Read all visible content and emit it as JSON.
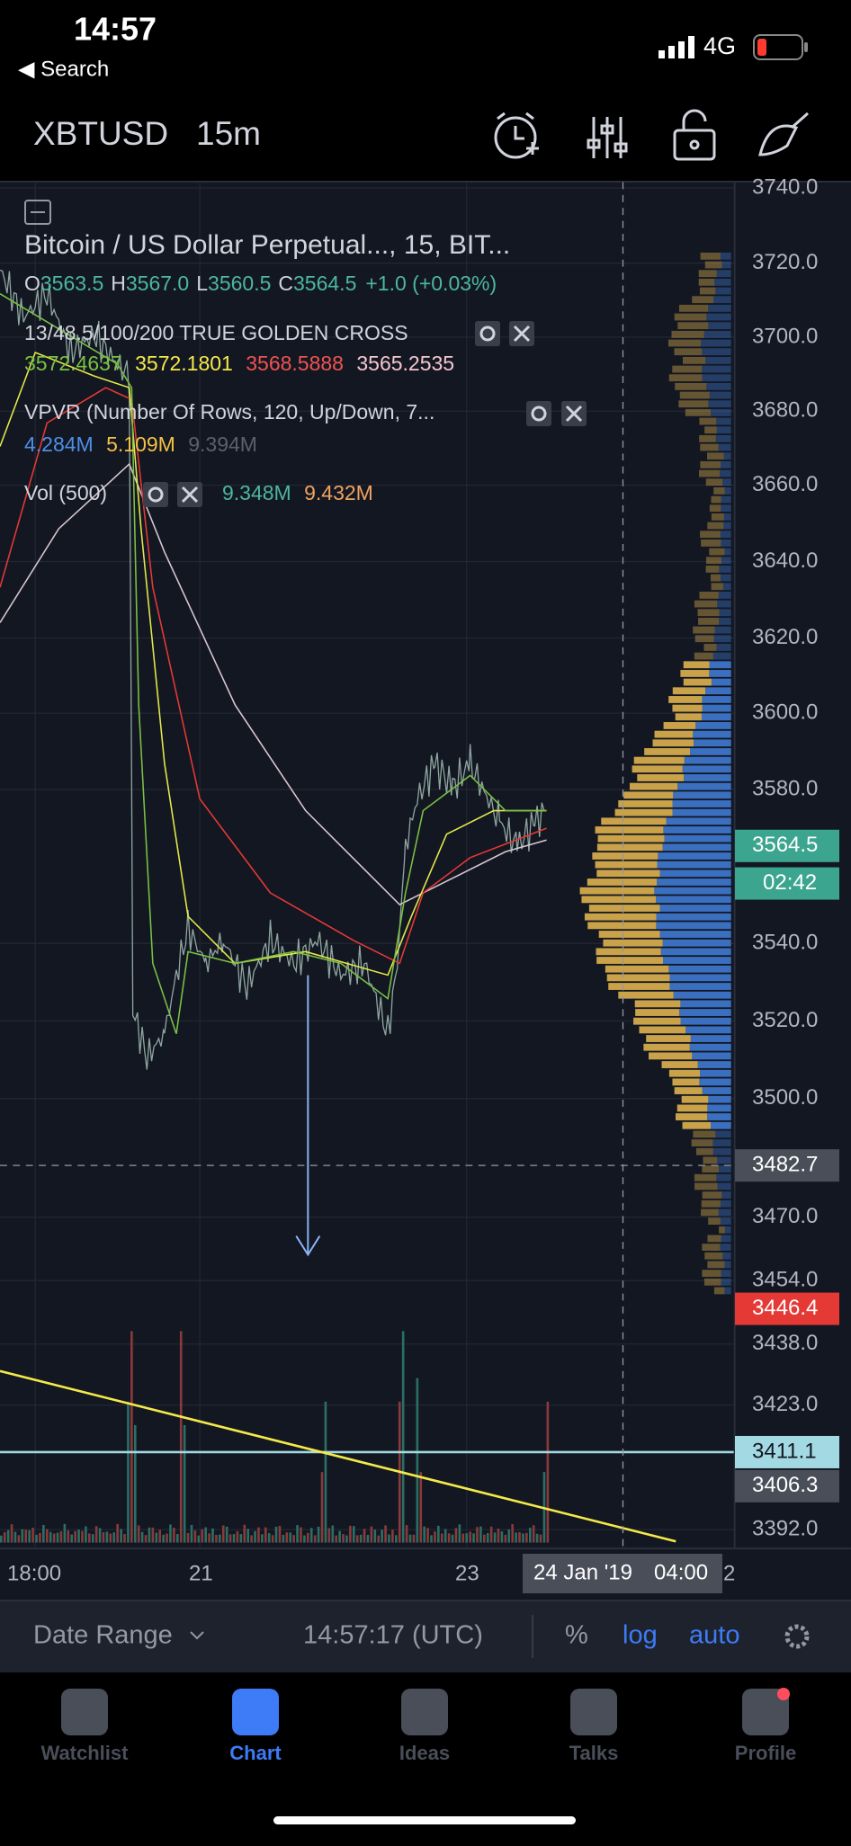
{
  "status_bar": {
    "time": "14:57",
    "back_label": "◀ Search",
    "network": "4G"
  },
  "header": {
    "symbol": "XBTUSD",
    "interval": "15m"
  },
  "chart": {
    "title": "Bitcoin / US Dollar Perpetual..., 15, BIT...",
    "ohlc": [
      {
        "label": "O",
        "value": "3563.5"
      },
      {
        "label": "H",
        "value": "3567.0"
      },
      {
        "label": "L",
        "value": "3560.5"
      },
      {
        "label": "C",
        "value": "3564.5"
      }
    ],
    "change": "+1.0 (+0.03%)",
    "ma_study": {
      "name": "13/48.5/100/200 TRUE GOLDEN CROSS",
      "values": [
        "3572.4637",
        "3572.1801",
        "3568.5888",
        "3565.2535"
      ]
    },
    "vpvr": {
      "name": "VPVR (Number Of Rows, 120, Up/Down, 7...",
      "values": [
        "4.284M",
        "5.109M",
        "9.394M"
      ]
    },
    "volume": {
      "name": "Vol (500)",
      "values": [
        "9.348M",
        "9.432M"
      ]
    },
    "price_axis": [
      "3740.0",
      "3720.0",
      "3700.0",
      "3680.0",
      "3660.0",
      "3640.0",
      "3620.0",
      "3600.0",
      "3580.0",
      "3540.0",
      "3520.0",
      "3500.0",
      "3470.0",
      "3454.0",
      "3438.0",
      "3423.0",
      "3392.0"
    ],
    "price_tags": [
      "3564.5",
      "02:42",
      "3482.7",
      "3446.4",
      "3411.1",
      "3406.3"
    ],
    "time_axis": [
      "18:00",
      "21",
      "23",
      "2"
    ],
    "crosshair_time": {
      "date": "24 Jan '19",
      "time": "04:00"
    }
  },
  "toolbar": {
    "date_range": "Date Range",
    "clock": "14:57:17 (UTC)",
    "percent": "%",
    "log": "log",
    "auto": "auto"
  },
  "tabs": [
    "Watchlist",
    "Chart",
    "Ideas",
    "Talks",
    "Profile"
  ]
}
